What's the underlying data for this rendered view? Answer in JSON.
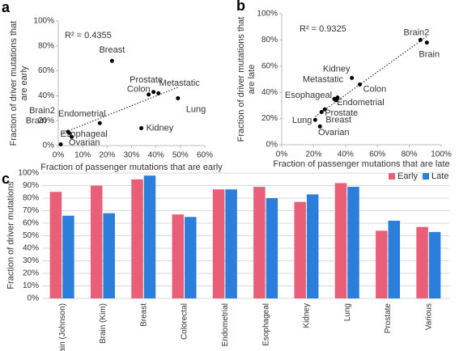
{
  "chart_data": [
    {
      "type": "scatter",
      "panel": "a",
      "annotation": "R² = 0.4355",
      "x_label": "Fraction of passenger mutations that are early",
      "y_label": "Fraction of driver mutations that are early",
      "labels": [
        "Breast",
        "Prostate",
        "Colon",
        "Metastatic",
        "Lung",
        "Kidney",
        "Endometrial",
        "Brain2",
        "Brain",
        "Esophageal",
        "Ovarian"
      ],
      "x": [
        22,
        37,
        39,
        41,
        49,
        34,
        17,
        4,
        4.5,
        5.5,
        1
      ],
      "y": [
        68,
        41,
        43,
        42,
        38,
        14,
        18,
        11,
        10,
        7,
        1
      ],
      "color": "#000000",
      "trendline": true,
      "xlim": [
        0,
        60
      ],
      "xticks": [
        {
          "value": 0,
          "label": "0%"
        },
        {
          "value": 10,
          "label": "10%"
        },
        {
          "value": 20,
          "label": "20%"
        },
        {
          "value": 30,
          "label": "30%"
        },
        {
          "value": 40,
          "label": "40%"
        },
        {
          "value": 50,
          "label": "50%"
        },
        {
          "value": 60,
          "label": "60%"
        }
      ],
      "ylim": [
        0,
        100
      ],
      "yticks": [
        {
          "value": 0,
          "label": "0%"
        },
        {
          "value": 20,
          "label": "20%"
        },
        {
          "value": 40,
          "label": "40%"
        },
        {
          "value": 60,
          "label": "60%"
        },
        {
          "value": 80,
          "label": "80%"
        },
        {
          "value": 100,
          "label": "100%"
        }
      ],
      "grid": false
    },
    {
      "type": "scatter",
      "panel": "b",
      "annotation": "R² = 0.9325",
      "x_label": "Fraction of passenger mutations that are late",
      "y_label": "Fraction of driver mutations that are late",
      "labels": [
        "Brain2",
        "Brain",
        "Kidney",
        "Metastatic",
        "Colon",
        "Esophageal",
        "Endometrial",
        "Breast",
        "Prostate",
        "Lung",
        "Ovarian"
      ],
      "x": [
        87,
        91,
        44,
        35,
        49,
        34,
        33,
        25,
        27,
        21,
        24
      ],
      "y": [
        80,
        78,
        51,
        36,
        46,
        34,
        35,
        25,
        27,
        19,
        14
      ],
      "color": "#000000",
      "trendline": true,
      "xlim": [
        0,
        100
      ],
      "xticks": [
        {
          "value": 0,
          "label": "0%"
        },
        {
          "value": 20,
          "label": "20%"
        },
        {
          "value": 40,
          "label": "40%"
        },
        {
          "value": 60,
          "label": "60%"
        },
        {
          "value": 80,
          "label": "80%"
        },
        {
          "value": 100,
          "label": "100%"
        }
      ],
      "ylim": [
        0,
        100
      ],
      "yticks": [
        {
          "value": 0,
          "label": "0%"
        },
        {
          "value": 20,
          "label": "20%"
        },
        {
          "value": 40,
          "label": "40%"
        },
        {
          "value": 60,
          "label": "60%"
        },
        {
          "value": 80,
          "label": "80%"
        },
        {
          "value": 100,
          "label": "100%"
        }
      ],
      "grid": false
    },
    {
      "type": "bar",
      "panel": "c",
      "y_label": "Fraction of driver mutations",
      "categories": [
        "Brain (Johnson)",
        "Brain (Kim)",
        "Breast",
        "Colorectal",
        "Endometrial",
        "Esophageal",
        "Kidney",
        "Lung",
        "Prostate",
        "Various"
      ],
      "series": [
        {
          "name": "Early",
          "color": "#ea5f78",
          "values": [
            85,
            90,
            95,
            67,
            87,
            89,
            77,
            92,
            54,
            57
          ]
        },
        {
          "name": "Late",
          "color": "#2b7fda",
          "values": [
            66,
            68,
            98,
            65,
            87,
            80,
            83,
            89,
            62,
            53
          ]
        }
      ],
      "ylim": [
        0,
        100
      ],
      "yticks": [
        {
          "value": 0,
          "label": "0%"
        },
        {
          "value": 10,
          "label": "10%"
        },
        {
          "value": 20,
          "label": "20%"
        },
        {
          "value": 30,
          "label": "30%"
        },
        {
          "value": 40,
          "label": "40%"
        },
        {
          "value": 50,
          "label": "50%"
        },
        {
          "value": 60,
          "label": "60%"
        },
        {
          "value": 70,
          "label": "70%"
        },
        {
          "value": 80,
          "label": "80%"
        },
        {
          "value": 90,
          "label": "90%"
        },
        {
          "value": 100,
          "label": "100%"
        }
      ],
      "grid": true,
      "legend": "top-right"
    }
  ]
}
